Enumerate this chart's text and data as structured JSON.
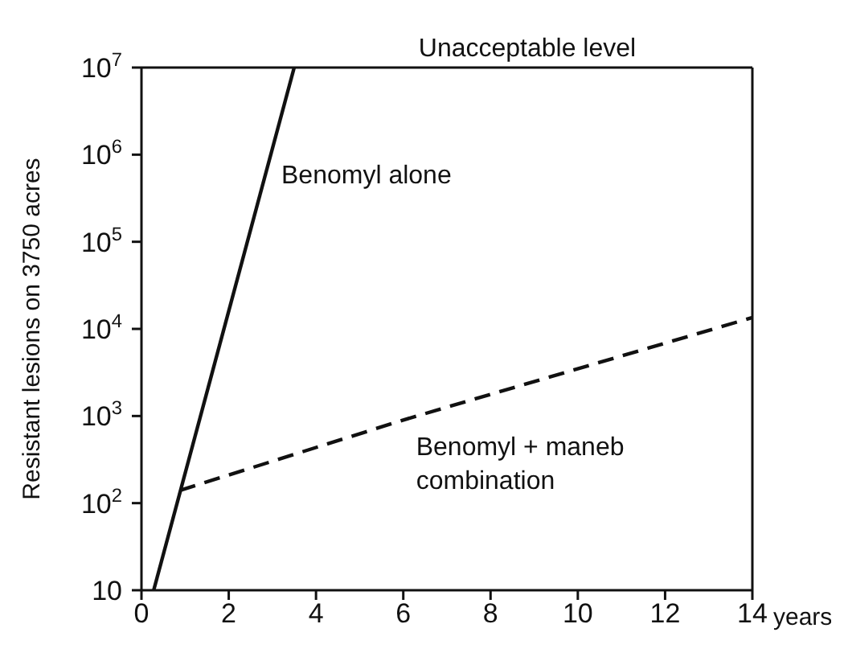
{
  "chart_data": {
    "type": "line",
    "xlabel": "years",
    "ylabel": "Resistant lesions on 3750 acres",
    "log": "y",
    "xlim": [
      0,
      14
    ],
    "xticks": [
      0,
      2,
      4,
      6,
      8,
      10,
      12,
      14
    ],
    "ylim": [
      10,
      10000000
    ],
    "yticks": [
      {
        "value": 10,
        "label": "10"
      },
      {
        "value": 100,
        "label": "10$^{2}$"
      },
      {
        "value": 1000,
        "label": "10$^{3}$"
      },
      {
        "value": 10000,
        "label": "10$^{4}$"
      },
      {
        "value": 100000,
        "label": "10$^{5}$"
      },
      {
        "value": 1000000,
        "label": "10$^{6}$"
      },
      {
        "value": 10000000,
        "label": "10$^{7}$"
      }
    ],
    "ref_lines": [
      {
        "axis": "y",
        "value": 10000000,
        "label": "Unacceptable level"
      }
    ],
    "grid": false,
    "legend": false,
    "marker": "none",
    "series": [
      {
        "name": "Benomyl alone",
        "color": "#111111",
        "line_style": "solid",
        "x": [
          0.28,
          3.5
        ],
        "values": [
          10,
          10000000
        ]
      },
      {
        "name": "Benomyl + maneb combination",
        "color": "#111111",
        "line_style": "dashed",
        "x": [
          0.88,
          6,
          14
        ],
        "values": [
          140,
          900,
          13500
        ]
      }
    ]
  }
}
